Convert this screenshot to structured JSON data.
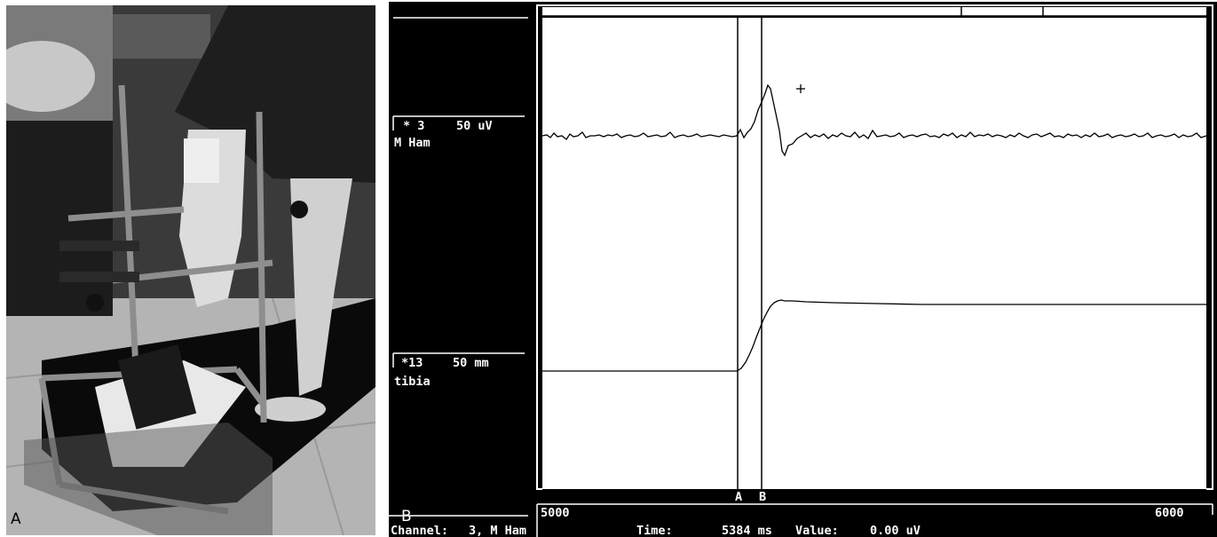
{
  "panel_a": {
    "letter": "A",
    "icons": [
      "knee-test-rig-photo-icon"
    ]
  },
  "panel_b": {
    "letter": "B",
    "channels": [
      {
        "id": "ch3",
        "header": "* 3",
        "scale": "50 uV",
        "name": "M Ham"
      },
      {
        "id": "ch13",
        "header": "*13",
        "scale": "50 mm",
        "name": "tibia"
      }
    ],
    "markers": [
      "A",
      "B"
    ],
    "time_axis": {
      "start": "5000",
      "end": "6000"
    },
    "status": {
      "channel_label": "Channel:",
      "channel_value": "3, M Ham",
      "time_label": "Time:",
      "time_value": "5384 ms",
      "value_label": "Value:",
      "value_value": "0.00 uV"
    },
    "colors": {
      "screen": "#000000",
      "plot_bg": "#ffffff",
      "trace": "#000000",
      "text": "#ffffff"
    }
  }
}
